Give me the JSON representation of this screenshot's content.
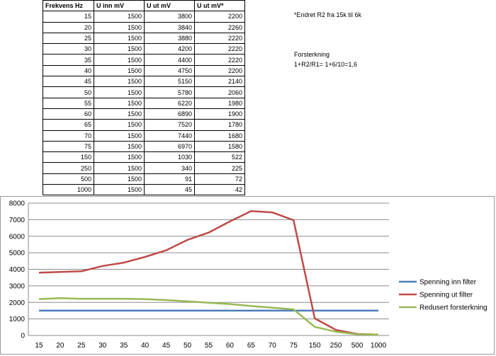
{
  "table": {
    "headers": [
      "Frekvens Hz",
      "U inn mV",
      "U ut mV",
      "U ut mV*"
    ],
    "rows": [
      [
        "15",
        "1500",
        "3800",
        "2200"
      ],
      [
        "20",
        "1500",
        "3840",
        "2260"
      ],
      [
        "25",
        "1500",
        "3880",
        "2220"
      ],
      [
        "30",
        "1500",
        "4200",
        "2220"
      ],
      [
        "35",
        "1500",
        "4400",
        "2220"
      ],
      [
        "40",
        "1500",
        "4750",
        "2200"
      ],
      [
        "45",
        "1500",
        "5150",
        "2140"
      ],
      [
        "50",
        "1500",
        "5780",
        "2060"
      ],
      [
        "55",
        "1500",
        "6220",
        "1980"
      ],
      [
        "60",
        "1500",
        "6890",
        "1900"
      ],
      [
        "65",
        "1500",
        "7520",
        "1780"
      ],
      [
        "70",
        "1500",
        "7440",
        "1680"
      ],
      [
        "75",
        "1500",
        "6970",
        "1580"
      ],
      [
        "150",
        "1500",
        "1030",
        "522"
      ],
      [
        "250",
        "1500",
        "340",
        "225"
      ],
      [
        "500",
        "1500",
        "91",
        "72"
      ],
      [
        "1000",
        "1500",
        "45",
        "42"
      ]
    ]
  },
  "notes": {
    "change": "*Endret R2 fra 15k til 6k",
    "gain_title": "Forsterkning",
    "gain_formula": "1+R2/R1= 1+6/10=1,6"
  },
  "chart_data": {
    "type": "line",
    "categories": [
      "15",
      "20",
      "25",
      "30",
      "35",
      "40",
      "45",
      "50",
      "55",
      "60",
      "65",
      "70",
      "75",
      "150",
      "250",
      "500",
      "1000"
    ],
    "series": [
      {
        "name": "Spenning inn filter",
        "color": "#4a7ebb",
        "values": [
          1500,
          1500,
          1500,
          1500,
          1500,
          1500,
          1500,
          1500,
          1500,
          1500,
          1500,
          1500,
          1500,
          1500,
          1500,
          1500,
          1500
        ]
      },
      {
        "name": "Spenning ut filter",
        "color": "#be4b48",
        "values": [
          3800,
          3840,
          3880,
          4200,
          4400,
          4750,
          5150,
          5780,
          6220,
          6890,
          7520,
          7440,
          6970,
          1030,
          340,
          91,
          45
        ]
      },
      {
        "name": "Redusert forsterkning",
        "color": "#98b954",
        "values": [
          2200,
          2260,
          2220,
          2220,
          2220,
          2200,
          2140,
          2060,
          1980,
          1900,
          1780,
          1680,
          1580,
          522,
          225,
          72,
          42
        ]
      }
    ],
    "ylim": [
      0,
      8000
    ],
    "yticks": [
      "0",
      "1000",
      "2000",
      "3000",
      "4000",
      "5000",
      "6000",
      "7000",
      "8000"
    ],
    "grid": true,
    "legend": "right"
  }
}
